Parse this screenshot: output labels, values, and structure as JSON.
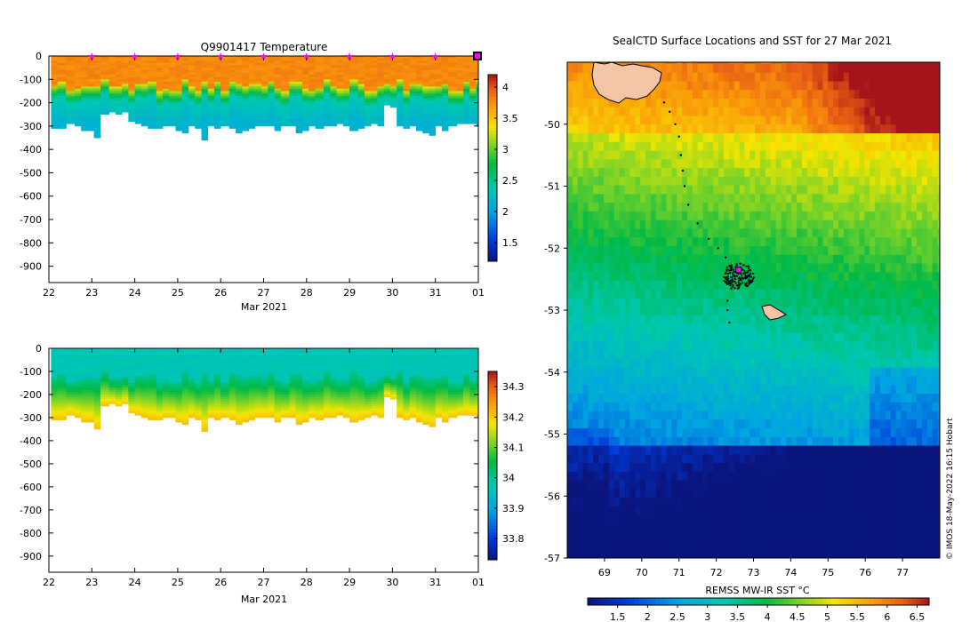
{
  "chart_data": [
    {
      "type": "heatmap",
      "title": "Q9901417  Temperature",
      "xlabel": "Mar 2021",
      "ylabel": "",
      "x_ticks": [
        "22",
        "23",
        "24",
        "25",
        "26",
        "27",
        "28",
        "29",
        "30",
        "31",
        "01"
      ],
      "y_ticks": [
        "0",
        "-100",
        "-200",
        "-300",
        "-400",
        "-500",
        "-600",
        "-700",
        "-800",
        "-900"
      ],
      "ylim": [
        -970,
        0
      ],
      "colorbar_ticks": [
        "1.5",
        "2",
        "2.5",
        "3",
        "3.5",
        "4"
      ],
      "colorbar_range": [
        1.2,
        4.2
      ],
      "profile_days": [
        22.05,
        22.2,
        22.4,
        22.6,
        22.75,
        22.9,
        23.05,
        23.2,
        23.4,
        23.55,
        23.7,
        23.85,
        24.0,
        24.15,
        24.3,
        24.5,
        24.65,
        24.8,
        24.95,
        25.1,
        25.25,
        25.4,
        25.55,
        25.7,
        25.85,
        26.0,
        26.2,
        26.35,
        26.5,
        26.65,
        26.8,
        26.95,
        27.1,
        27.25,
        27.4,
        27.6,
        27.75,
        27.9,
        28.05,
        28.2,
        28.4,
        28.55,
        28.7,
        28.85,
        29.0,
        29.2,
        29.35,
        29.5,
        29.65,
        29.8,
        29.95,
        30.1,
        30.25,
        30.4,
        30.55,
        30.7,
        30.85,
        31.0,
        31.15,
        31.3,
        31.5,
        31.65,
        31.8,
        31.95
      ],
      "profile_max_depth": [
        310,
        310,
        290,
        300,
        320,
        320,
        350,
        250,
        240,
        250,
        240,
        280,
        290,
        300,
        310,
        310,
        300,
        300,
        320,
        330,
        300,
        310,
        360,
        300,
        310,
        300,
        310,
        330,
        320,
        310,
        300,
        300,
        300,
        320,
        300,
        300,
        330,
        320,
        300,
        310,
        300,
        300,
        290,
        300,
        320,
        310,
        300,
        290,
        300,
        210,
        220,
        300,
        310,
        300,
        320,
        330,
        340,
        300,
        320,
        300,
        290,
        290,
        290,
        300
      ],
      "surface_markers_days": [
        23,
        24,
        25,
        26,
        27,
        28,
        29,
        30,
        31
      ],
      "marker_symbol": "star"
    },
    {
      "type": "heatmap",
      "title": "",
      "xlabel": "Mar 2021",
      "ylabel": "",
      "x_ticks": [
        "22",
        "23",
        "24",
        "25",
        "26",
        "27",
        "28",
        "29",
        "30",
        "31",
        "01"
      ],
      "y_ticks": [
        "0",
        "-100",
        "-200",
        "-300",
        "-400",
        "-500",
        "-600",
        "-700",
        "-800",
        "-900"
      ],
      "ylim": [
        -970,
        0
      ],
      "colorbar_ticks": [
        "33.8",
        "33.9",
        "34",
        "34.1",
        "34.2",
        "34.3"
      ],
      "colorbar_range": [
        33.73,
        34.35
      ]
    },
    {
      "type": "heatmap",
      "title": "SealCTD Surface Locations and SST for 27 Mar 2021",
      "xlabel": "",
      "ylabel": "",
      "x_ticks": [
        "69",
        "70",
        "71",
        "72",
        "73",
        "74",
        "75",
        "76",
        "77"
      ],
      "y_ticks": [
        "-50",
        "-51",
        "-52",
        "-53",
        "-54",
        "-55",
        "-56",
        "-57"
      ],
      "xlim": [
        68.0,
        78.0
      ],
      "ylim": [
        -57.0,
        -49.0
      ],
      "colorbar_label": "REMSS MW-IR SST °C",
      "colorbar_ticks": [
        "1.5",
        "2",
        "2.5",
        "3",
        "3.5",
        "4",
        "4.5",
        "5",
        "5.5",
        "6",
        "6.5"
      ],
      "colorbar_range": [
        1.0,
        6.7
      ],
      "track_points": [
        [
          70.6,
          -49.65
        ],
        [
          70.75,
          -49.8
        ],
        [
          70.9,
          -50.0
        ],
        [
          71.0,
          -50.2
        ],
        [
          71.05,
          -50.5
        ],
        [
          71.1,
          -50.75
        ],
        [
          71.15,
          -51.0
        ],
        [
          71.25,
          -51.3
        ],
        [
          71.5,
          -51.6
        ],
        [
          71.8,
          -51.85
        ],
        [
          72.05,
          -52.0
        ],
        [
          72.25,
          -52.15
        ],
        [
          72.4,
          -52.3
        ],
        [
          72.5,
          -52.45
        ],
        [
          72.6,
          -52.55
        ],
        [
          72.4,
          -52.65
        ],
        [
          72.3,
          -52.85
        ],
        [
          72.3,
          -53.0
        ],
        [
          72.35,
          -53.2
        ]
      ],
      "cluster_center": [
        72.6,
        -52.45
      ],
      "latest_position": [
        72.6,
        -52.35
      ],
      "credit": "© IMOS 18-May-2022 16:15 Hobart"
    }
  ]
}
